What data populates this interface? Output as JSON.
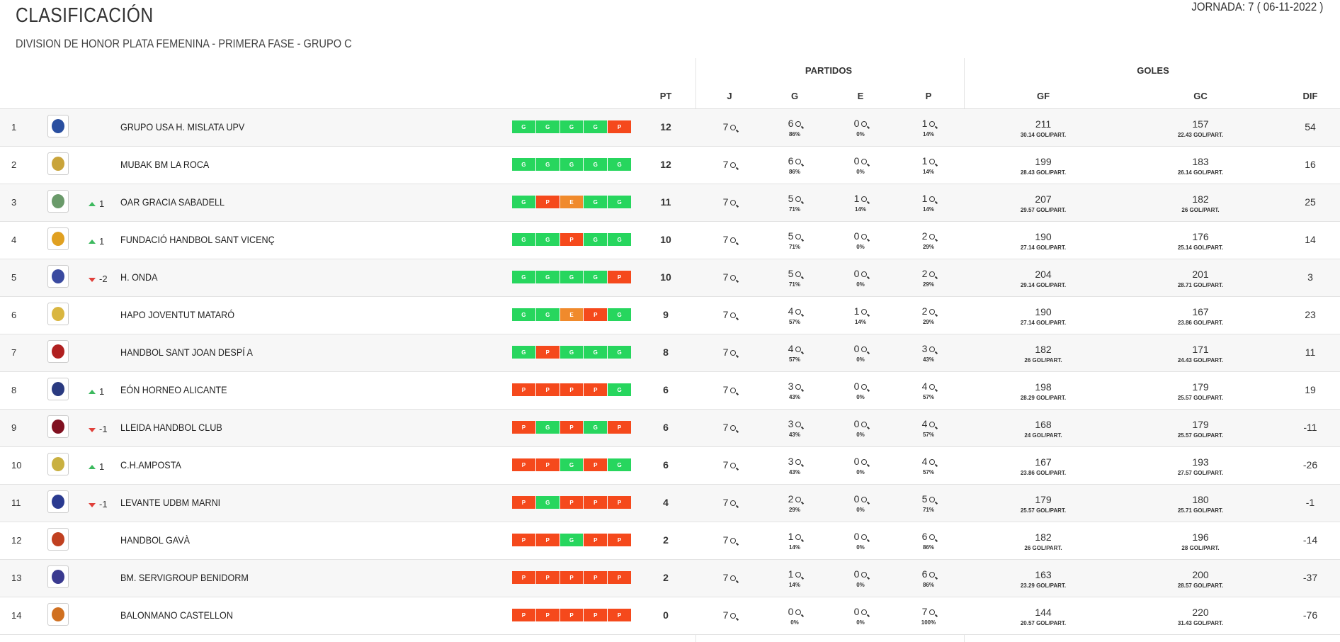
{
  "header": {
    "title": "CLASIFICACIÓN",
    "subtitle": "DIVISION DE HONOR PLATA FEMENINA - PRIMERA FASE - GRUPO C",
    "jornada": "JORNADA: 7 ( 06-11-2022 )"
  },
  "colors": {
    "win": "#27d65e",
    "loss": "#f5491c",
    "draw": "#f08a2c",
    "up": "#3cb95e",
    "down": "#e0403a"
  },
  "columns": {
    "group_partidos": "PARTIDOS",
    "group_goles": "GOLES",
    "pt": "PT",
    "j": "J",
    "g": "G",
    "e": "E",
    "p": "P",
    "gf": "GF",
    "gc": "GC",
    "dif": "DIF"
  },
  "rows": [
    {
      "pos": "1",
      "trend": "",
      "team": "GRUPO USA H. MISLATA UPV",
      "form": [
        "G",
        "G",
        "G",
        "G",
        "P"
      ],
      "pt": "12",
      "j": "7",
      "g": "6",
      "g_pct": "86%",
      "e": "0",
      "e_pct": "0%",
      "p": "1",
      "p_pct": "14%",
      "gf": "211",
      "gf_avg": "30.14 GOL/PART.",
      "gc": "157",
      "gc_avg": "22.43 GOL/PART.",
      "dif": "54"
    },
    {
      "pos": "2",
      "trend": "",
      "team": "MUBAK BM LA ROCA",
      "form": [
        "G",
        "G",
        "G",
        "G",
        "G"
      ],
      "pt": "12",
      "j": "7",
      "g": "6",
      "g_pct": "86%",
      "e": "0",
      "e_pct": "0%",
      "p": "1",
      "p_pct": "14%",
      "gf": "199",
      "gf_avg": "28.43 GOL/PART.",
      "gc": "183",
      "gc_avg": "26.14 GOL/PART.",
      "dif": "16"
    },
    {
      "pos": "3",
      "trend": "1",
      "team": "OAR GRACIA SABADELL",
      "form": [
        "G",
        "P",
        "E",
        "G",
        "G"
      ],
      "pt": "11",
      "j": "7",
      "g": "5",
      "g_pct": "71%",
      "e": "1",
      "e_pct": "14%",
      "p": "1",
      "p_pct": "14%",
      "gf": "207",
      "gf_avg": "29.57 GOL/PART.",
      "gc": "182",
      "gc_avg": "26 GOL/PART.",
      "dif": "25"
    },
    {
      "pos": "4",
      "trend": "1",
      "team": "FUNDACIÓ HANDBOL SANT VICENÇ",
      "form": [
        "G",
        "G",
        "P",
        "G",
        "G"
      ],
      "pt": "10",
      "j": "7",
      "g": "5",
      "g_pct": "71%",
      "e": "0",
      "e_pct": "0%",
      "p": "2",
      "p_pct": "29%",
      "gf": "190",
      "gf_avg": "27.14 GOL/PART.",
      "gc": "176",
      "gc_avg": "25.14 GOL/PART.",
      "dif": "14"
    },
    {
      "pos": "5",
      "trend": "-2",
      "team": "H. ONDA",
      "form": [
        "G",
        "G",
        "G",
        "G",
        "P"
      ],
      "pt": "10",
      "j": "7",
      "g": "5",
      "g_pct": "71%",
      "e": "0",
      "e_pct": "0%",
      "p": "2",
      "p_pct": "29%",
      "gf": "204",
      "gf_avg": "29.14 GOL/PART.",
      "gc": "201",
      "gc_avg": "28.71 GOL/PART.",
      "dif": "3"
    },
    {
      "pos": "6",
      "trend": "",
      "team": "HAPO JOVENTUT MATARÓ",
      "form": [
        "G",
        "G",
        "E",
        "P",
        "G"
      ],
      "pt": "9",
      "j": "7",
      "g": "4",
      "g_pct": "57%",
      "e": "1",
      "e_pct": "14%",
      "p": "2",
      "p_pct": "29%",
      "gf": "190",
      "gf_avg": "27.14 GOL/PART.",
      "gc": "167",
      "gc_avg": "23.86 GOL/PART.",
      "dif": "23"
    },
    {
      "pos": "7",
      "trend": "",
      "team": "HANDBOL SANT JOAN DESPÍ A",
      "form": [
        "G",
        "P",
        "G",
        "G",
        "G"
      ],
      "pt": "8",
      "j": "7",
      "g": "4",
      "g_pct": "57%",
      "e": "0",
      "e_pct": "0%",
      "p": "3",
      "p_pct": "43%",
      "gf": "182",
      "gf_avg": "26 GOL/PART.",
      "gc": "171",
      "gc_avg": "24.43 GOL/PART.",
      "dif": "11"
    },
    {
      "pos": "8",
      "trend": "1",
      "team": "EÓN HORNEO ALICANTE",
      "form": [
        "P",
        "P",
        "P",
        "P",
        "G"
      ],
      "pt": "6",
      "j": "7",
      "g": "3",
      "g_pct": "43%",
      "e": "0",
      "e_pct": "0%",
      "p": "4",
      "p_pct": "57%",
      "gf": "198",
      "gf_avg": "28.29 GOL/PART.",
      "gc": "179",
      "gc_avg": "25.57 GOL/PART.",
      "dif": "19"
    },
    {
      "pos": "9",
      "trend": "-1",
      "team": "LLEIDA HANDBOL CLUB",
      "form": [
        "P",
        "G",
        "P",
        "G",
        "P"
      ],
      "pt": "6",
      "j": "7",
      "g": "3",
      "g_pct": "43%",
      "e": "0",
      "e_pct": "0%",
      "p": "4",
      "p_pct": "57%",
      "gf": "168",
      "gf_avg": "24 GOL/PART.",
      "gc": "179",
      "gc_avg": "25.57 GOL/PART.",
      "dif": "-11"
    },
    {
      "pos": "10",
      "trend": "1",
      "team": "C.H.AMPOSTA",
      "form": [
        "P",
        "P",
        "G",
        "P",
        "G"
      ],
      "pt": "6",
      "j": "7",
      "g": "3",
      "g_pct": "43%",
      "e": "0",
      "e_pct": "0%",
      "p": "4",
      "p_pct": "57%",
      "gf": "167",
      "gf_avg": "23.86 GOL/PART.",
      "gc": "193",
      "gc_avg": "27.57 GOL/PART.",
      "dif": "-26"
    },
    {
      "pos": "11",
      "trend": "-1",
      "team": "LEVANTE UDBM MARNI",
      "form": [
        "P",
        "G",
        "P",
        "P",
        "P"
      ],
      "pt": "4",
      "j": "7",
      "g": "2",
      "g_pct": "29%",
      "e": "0",
      "e_pct": "0%",
      "p": "5",
      "p_pct": "71%",
      "gf": "179",
      "gf_avg": "25.57 GOL/PART.",
      "gc": "180",
      "gc_avg": "25.71 GOL/PART.",
      "dif": "-1"
    },
    {
      "pos": "12",
      "trend": "",
      "team": "HANDBOL GAVÀ",
      "form": [
        "P",
        "P",
        "G",
        "P",
        "P"
      ],
      "pt": "2",
      "j": "7",
      "g": "1",
      "g_pct": "14%",
      "e": "0",
      "e_pct": "0%",
      "p": "6",
      "p_pct": "86%",
      "gf": "182",
      "gf_avg": "26 GOL/PART.",
      "gc": "196",
      "gc_avg": "28 GOL/PART.",
      "dif": "-14"
    },
    {
      "pos": "13",
      "trend": "",
      "team": "BM. SERVIGROUP BENIDORM",
      "form": [
        "P",
        "P",
        "P",
        "P",
        "P"
      ],
      "pt": "2",
      "j": "7",
      "g": "1",
      "g_pct": "14%",
      "e": "0",
      "e_pct": "0%",
      "p": "6",
      "p_pct": "86%",
      "gf": "163",
      "gf_avg": "23.29 GOL/PART.",
      "gc": "200",
      "gc_avg": "28.57 GOL/PART.",
      "dif": "-37"
    },
    {
      "pos": "14",
      "trend": "",
      "team": "BALONMANO CASTELLON",
      "form": [
        "P",
        "P",
        "P",
        "P",
        "P"
      ],
      "pt": "0",
      "j": "7",
      "g": "0",
      "g_pct": "0%",
      "e": "0",
      "e_pct": "0%",
      "p": "7",
      "p_pct": "100%",
      "gf": "144",
      "gf_avg": "20.57 GOL/PART.",
      "gc": "220",
      "gc_avg": "31.43 GOL/PART.",
      "dif": "-76"
    }
  ]
}
